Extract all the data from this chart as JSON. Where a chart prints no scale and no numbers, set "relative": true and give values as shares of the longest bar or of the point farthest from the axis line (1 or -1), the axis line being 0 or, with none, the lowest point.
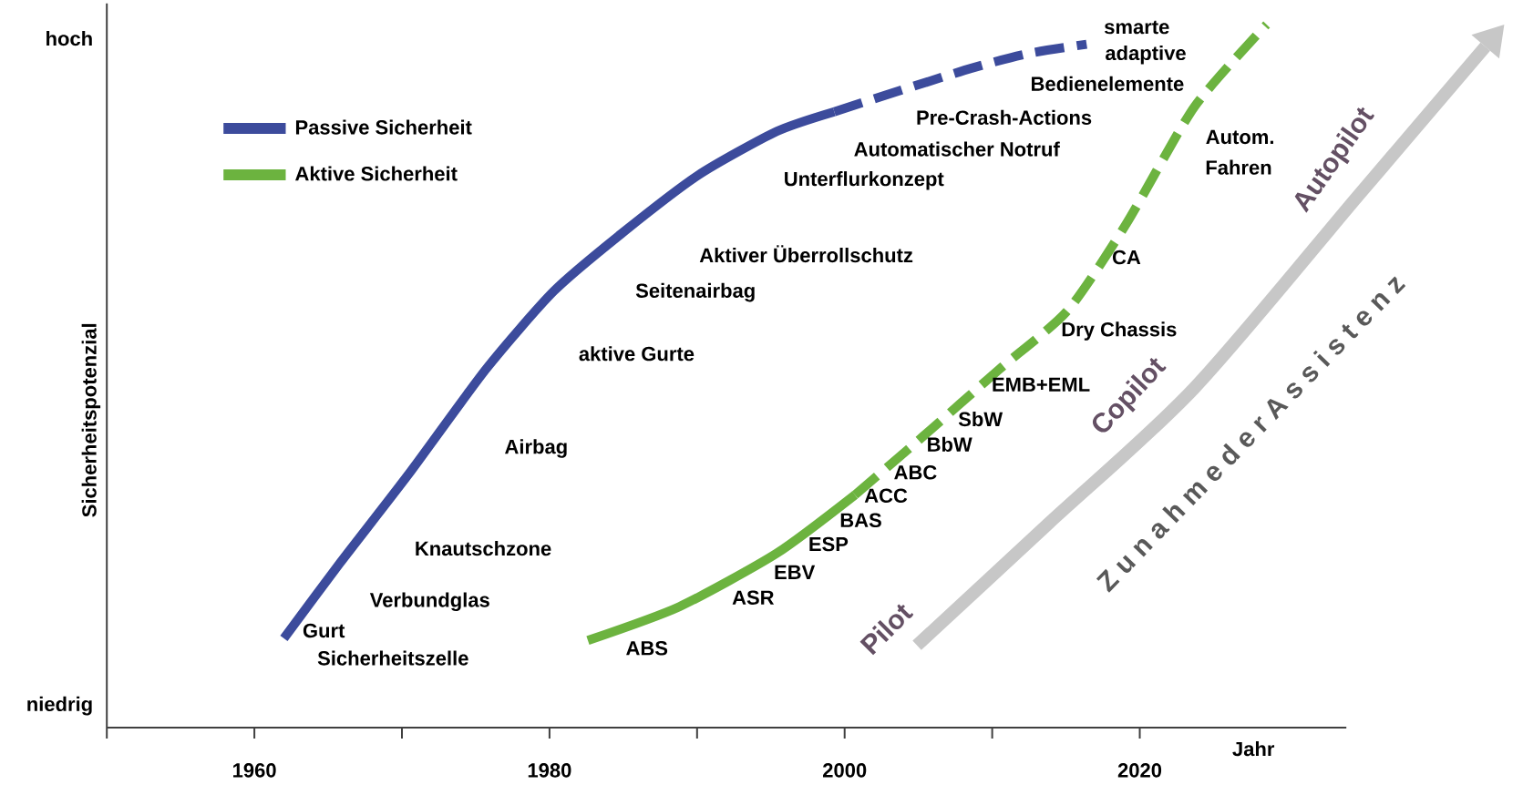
{
  "chart_data": {
    "type": "line",
    "relative": true,
    "xlabel": "Jahr",
    "ylabel": "Sicherheitspotenzial",
    "xlim": [
      1950,
      2034
    ],
    "xticks": [
      {
        "value": 1950,
        "label": null
      },
      1960,
      {
        "value": 1970,
        "label": null
      },
      1980,
      {
        "value": 1990,
        "label": null
      },
      2000,
      {
        "value": 2010,
        "label": null
      },
      2020
    ],
    "legend": "top left",
    "grid": false,
    "series": [
      {
        "name": "Passive Sicherheit",
        "color": "#3c4b9c",
        "line_style": "solid",
        "x": [
          1962.0,
          1965.8,
          1970.4,
          1975.7,
          1980.3,
          1984.9,
          1990.1,
          1995.4,
          1999.3
        ],
        "values": [
          0.127,
          0.234,
          0.359,
          0.51,
          0.621,
          0.703,
          0.786,
          0.848,
          0.876
        ]
      },
      {
        "color": "#3c4b9c",
        "line_style": "dashed",
        "x": [
          1999.3,
          2003.3,
          2008.6,
          2012.5,
          2016.4
        ],
        "values": [
          0.876,
          0.903,
          0.938,
          0.959,
          0.972
        ]
      },
      {
        "name": "Aktive Sicherheit",
        "color": "#6cb33f",
        "line_style": "solid",
        "x": [
          1982.6,
          1988.8,
          1995.4,
          2000.7
        ],
        "values": [
          0.124,
          0.172,
          0.248,
          0.331
        ]
      },
      {
        "color": "#6cb33f",
        "line_style": "dashed",
        "x": [
          2000.7,
          2005.3,
          2010.5,
          2015.1,
          2019.1,
          2023.7,
          2028.6
        ],
        "values": [
          0.331,
          0.414,
          0.51,
          0.593,
          0.717,
          0.883,
          1.0
        ]
      }
    ],
    "annotations": [
      "hoch",
      "niedrig",
      "Gurt",
      "Sicherheitszelle",
      "Verbundglas",
      "Knautschzone",
      "Airbag",
      "aktive Gurte",
      "Seitenairbag",
      "Aktiver Überrollschutz",
      "Unterflurkonzept",
      "Automatischer Notruf",
      "Pre-Crash-Actions",
      "smarte",
      "adaptive",
      "Bedienelemente",
      "Autom.",
      "Fahren",
      "CA",
      "Dry Chassis",
      "EMB+EML",
      "SbW",
      "BbW",
      "ABC",
      "ACC",
      "BAS",
      "ESP",
      "EBV",
      "ASR",
      "ABS",
      "Pilot",
      "Copilot",
      "Autopilot",
      "Z u n a h m e d e r A s s i s t e n z"
    ]
  }
}
